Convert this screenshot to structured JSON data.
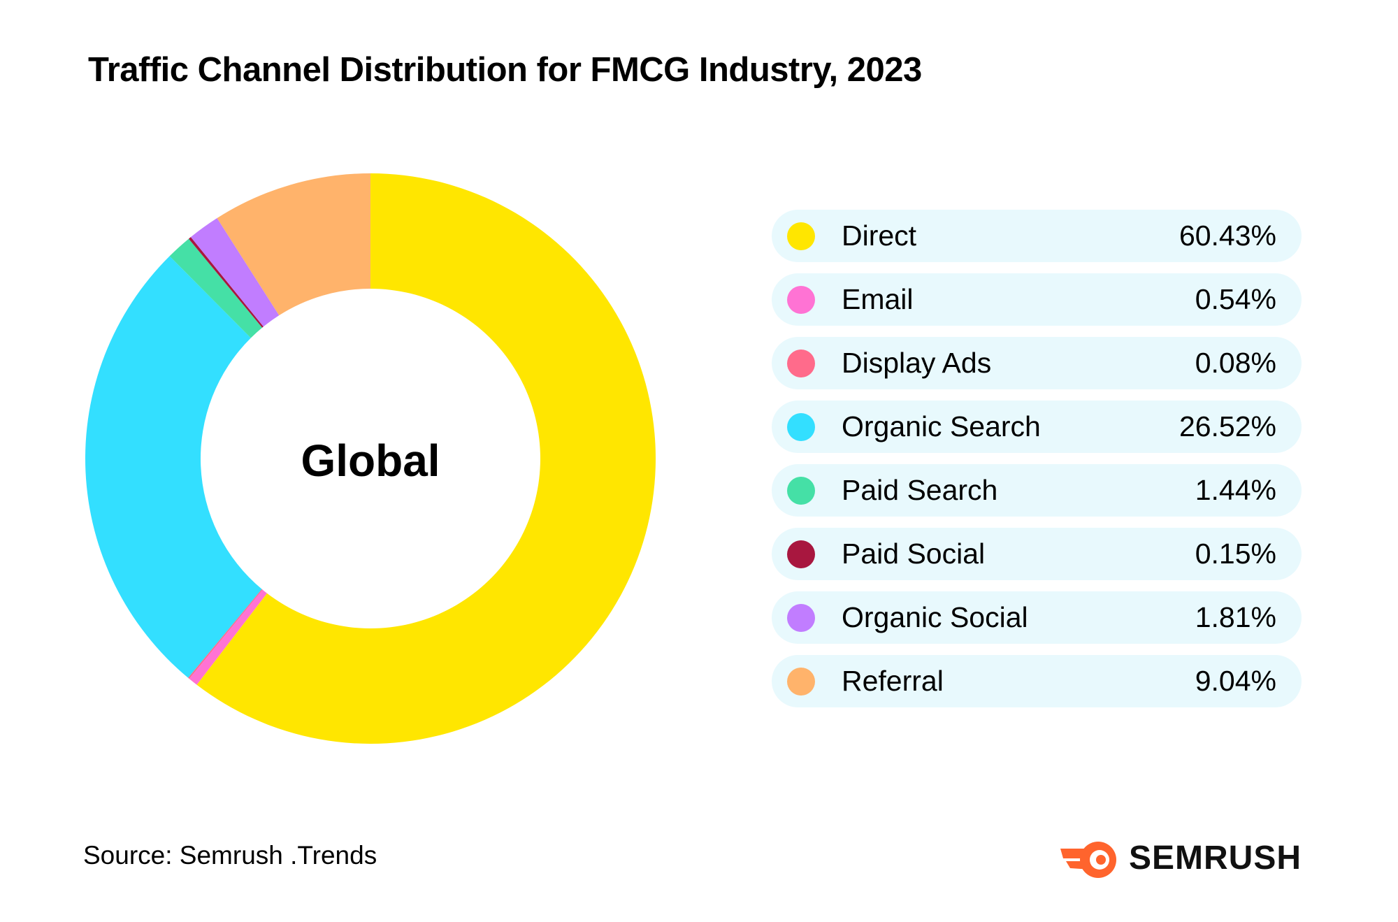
{
  "title": "Traffic Channel Distribution for FMCG Industry, 2023",
  "chart_data": {
    "type": "pie",
    "variant": "donut",
    "title": "Traffic Channel Distribution for FMCG Industry, 2023",
    "center_label": "Global",
    "unit": "%",
    "legend_position": "right",
    "start_angle": "top, clockwise",
    "slices": [
      {
        "label": "Direct",
        "value": 60.43,
        "display": "60.43%",
        "color": "#ffe600"
      },
      {
        "label": "Email",
        "value": 0.54,
        "display": "0.54%",
        "color": "#ff73d4"
      },
      {
        "label": "Display Ads",
        "value": 0.08,
        "display": "0.08%",
        "color": "#ff6b8b"
      },
      {
        "label": "Organic Search",
        "value": 26.52,
        "display": "26.52%",
        "color": "#33dfff"
      },
      {
        "label": "Paid Search",
        "value": 1.44,
        "display": "1.44%",
        "color": "#45e0a6"
      },
      {
        "label": "Paid Social",
        "value": 0.15,
        "display": "0.15%",
        "color": "#a8173f"
      },
      {
        "label": "Organic Social",
        "value": 1.81,
        "display": "1.81%",
        "color": "#c17dff"
      },
      {
        "label": "Referral",
        "value": 9.04,
        "display": "9.04%",
        "color": "#ffb36b"
      }
    ]
  },
  "colors": {
    "legend_row_background": "#e8f9fd",
    "brand_orange": "#ff642d"
  },
  "source": "Source: Semrush .Trends",
  "brand": {
    "name": "SEMRUSH",
    "icon": "semrush-fire-logo-icon"
  }
}
